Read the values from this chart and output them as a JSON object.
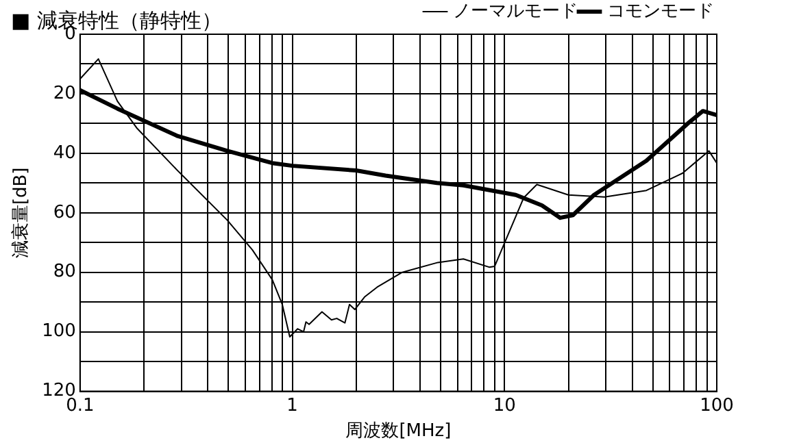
{
  "chart_data": {
    "type": "line",
    "title": "■ 減衰特性（静特性）",
    "xlabel": "周波数[MHz]",
    "ylabel": "減衰量[dB]",
    "log": "x",
    "grid": true,
    "legend": "top right",
    "marker": "none",
    "line_style": "solid",
    "xlim": [
      0.1,
      100
    ],
    "xticks": [
      0.1,
      {
        "value": 0.2,
        "label": null
      },
      {
        "value": 0.3,
        "label": null
      },
      {
        "value": 0.4,
        "label": null
      },
      {
        "value": 0.5,
        "label": null
      },
      {
        "value": 0.6,
        "label": null
      },
      {
        "value": 0.7,
        "label": null
      },
      {
        "value": 0.8,
        "label": null
      },
      {
        "value": 0.9,
        "label": null
      },
      1,
      {
        "value": 2,
        "label": null
      },
      {
        "value": 3,
        "label": null
      },
      {
        "value": 4,
        "label": null
      },
      {
        "value": 5,
        "label": null
      },
      {
        "value": 6,
        "label": null
      },
      {
        "value": 7,
        "label": null
      },
      {
        "value": 8,
        "label": null
      },
      {
        "value": 9,
        "label": null
      },
      10,
      {
        "value": 20,
        "label": null
      },
      {
        "value": 30,
        "label": null
      },
      {
        "value": 40,
        "label": null
      },
      {
        "value": 50,
        "label": null
      },
      {
        "value": 60,
        "label": null
      },
      {
        "value": 70,
        "label": null
      },
      {
        "value": 80,
        "label": null
      },
      {
        "value": 90,
        "label": null
      },
      100
    ],
    "ylim": [
      120,
      0
    ],
    "yticks": [
      0,
      {
        "value": 10,
        "label": null
      },
      20,
      {
        "value": 30,
        "label": null
      },
      40,
      {
        "value": 50,
        "label": null
      },
      60,
      {
        "value": 70,
        "label": null
      },
      80,
      {
        "value": 90,
        "label": null
      },
      100,
      {
        "value": 110,
        "label": null
      },
      120
    ],
    "series": [
      {
        "name": "ノーマルモード",
        "color": "#000000",
        "x": [
          0.1,
          0.122,
          0.15,
          0.186,
          0.288,
          0.494,
          0.649,
          0.805,
          0.897,
          0.973,
          1.06,
          1.13,
          1.16,
          1.2,
          1.38,
          1.53,
          1.62,
          1.77,
          1.86,
          1.97,
          2.19,
          2.51,
          3.3,
          4.85,
          6.4,
          8.5,
          8.98,
          12.3,
          14.2,
          20,
          29.6,
          46.6,
          69,
          91.8,
          100
        ],
        "values": [
          15,
          8.3,
          22.5,
          31.7,
          45.8,
          62.5,
          72.5,
          82.5,
          90.8,
          101.7,
          99,
          100,
          96.7,
          97.5,
          93.3,
          96,
          95.5,
          97,
          90.8,
          92.5,
          88.3,
          85,
          80,
          76.7,
          75.5,
          78.3,
          78,
          55,
          50.5,
          54,
          54.7,
          52.5,
          46.7,
          39.2,
          43.3
        ]
      },
      {
        "name": "コモンモード",
        "color": "#000000",
        "x": [
          0.1,
          0.15,
          0.288,
          0.494,
          0.805,
          1,
          2,
          2.75,
          4.8,
          6.4,
          11.3,
          15,
          18.3,
          21,
          26.4,
          46.6,
          73,
          86,
          100
        ],
        "values": [
          18.8,
          25,
          34.2,
          39.2,
          43.3,
          44.2,
          45.8,
          47.5,
          50,
          50.8,
          54,
          57.5,
          61.7,
          60.8,
          54,
          42.5,
          30,
          25.8,
          27.2
        ]
      }
    ]
  }
}
